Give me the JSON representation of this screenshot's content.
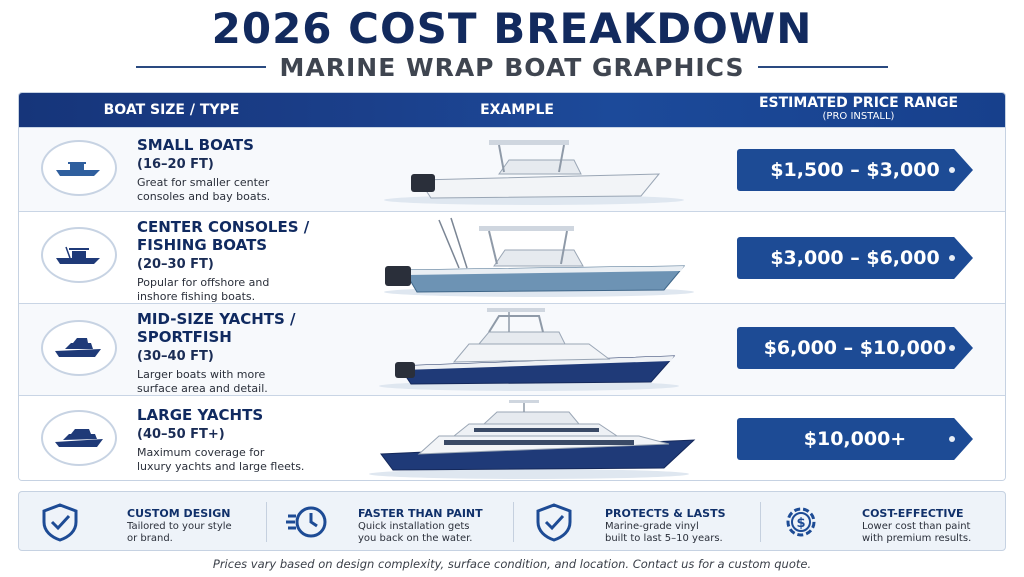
{
  "header": {
    "title": "2026 COST BREAKDOWN",
    "subtitle": "MARINE WRAP BOAT GRAPHICS"
  },
  "table": {
    "col_type": "BOAT SIZE / TYPE",
    "col_example": "EXAMPLE",
    "col_price": "ESTIMATED PRICE RANGE",
    "col_price_note": "(PRO INSTALL)",
    "rows": [
      {
        "name_1": "SMALL BOATS",
        "name_2": "",
        "range": "(16–20 FT)",
        "desc_1": "Great for smaller center",
        "desc_2": "consoles and bay boats.",
        "price": "$1,500 – $3,000",
        "icon": "small-boat-icon"
      },
      {
        "name_1": "CENTER CONSOLES /",
        "name_2": "FISHING BOATS",
        "range": "(20–30 FT)",
        "desc_1": "Popular for offshore and",
        "desc_2": "inshore fishing boats.",
        "price": "$3,000 – $6,000",
        "icon": "fishing-boat-icon"
      },
      {
        "name_1": "MID-SIZE YACHTS /",
        "name_2": "SPORTFISH",
        "range": "(30–40 FT)",
        "desc_1": "Larger boats with more",
        "desc_2": "surface area and detail.",
        "price": "$6,000 – $10,000",
        "icon": "yacht-icon"
      },
      {
        "name_1": "LARGE YACHTS",
        "name_2": "",
        "range": "(40–50 FT+)",
        "desc_1": "Maximum coverage for",
        "desc_2": "luxury yachts and large fleets.",
        "price": "$10,000+",
        "icon": "large-yacht-icon"
      }
    ]
  },
  "features": [
    {
      "title": "CUSTOM DESIGN",
      "desc_1": "Tailored to your style",
      "desc_2": "or brand.",
      "icon": "shield-check-icon"
    },
    {
      "title": "FASTER THAN PAINT",
      "desc_1": "Quick installation gets",
      "desc_2": "you back on the water.",
      "icon": "fast-clock-icon"
    },
    {
      "title": "PROTECTS & LASTS",
      "desc_1": "Marine-grade vinyl",
      "desc_2": "built to last 5–10 years.",
      "icon": "shield-check-icon"
    },
    {
      "title": "COST-EFFECTIVE",
      "desc_1": "Lower cost than paint",
      "desc_2": "with premium results.",
      "icon": "dollar-gear-icon"
    }
  ],
  "footnote": "Prices vary based on design complexity, surface condition, and location. Contact us for a custom quote.",
  "colors": {
    "navy": "#122a5e",
    "header_blue": "#1b3f8a",
    "tag_blue": "#1d4b95",
    "hull_white": "#f2f4f7",
    "hull_blue": "#5f86a8",
    "hull_navy": "#1f3a78"
  }
}
